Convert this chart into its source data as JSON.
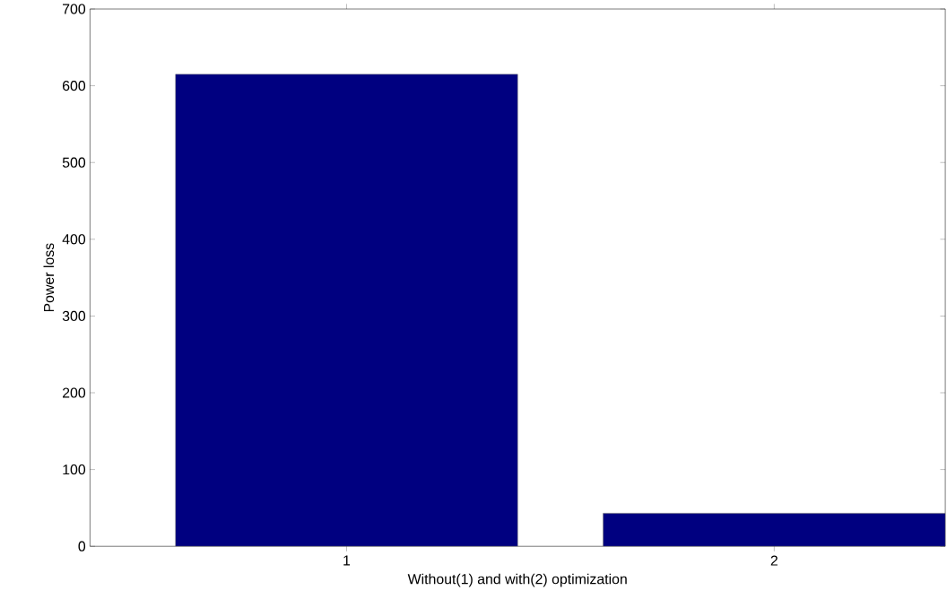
{
  "chart_data": {
    "type": "bar",
    "xlabel": "Without(1) and with(2) optimization",
    "ylabel": "Power loss",
    "categories": [
      "1",
      "2"
    ],
    "values": [
      615,
      43
    ],
    "color": "#000080",
    "ylim": [
      0,
      700
    ],
    "yticks": [
      0,
      100,
      200,
      300,
      400,
      500,
      600,
      700
    ],
    "grid": false
  }
}
